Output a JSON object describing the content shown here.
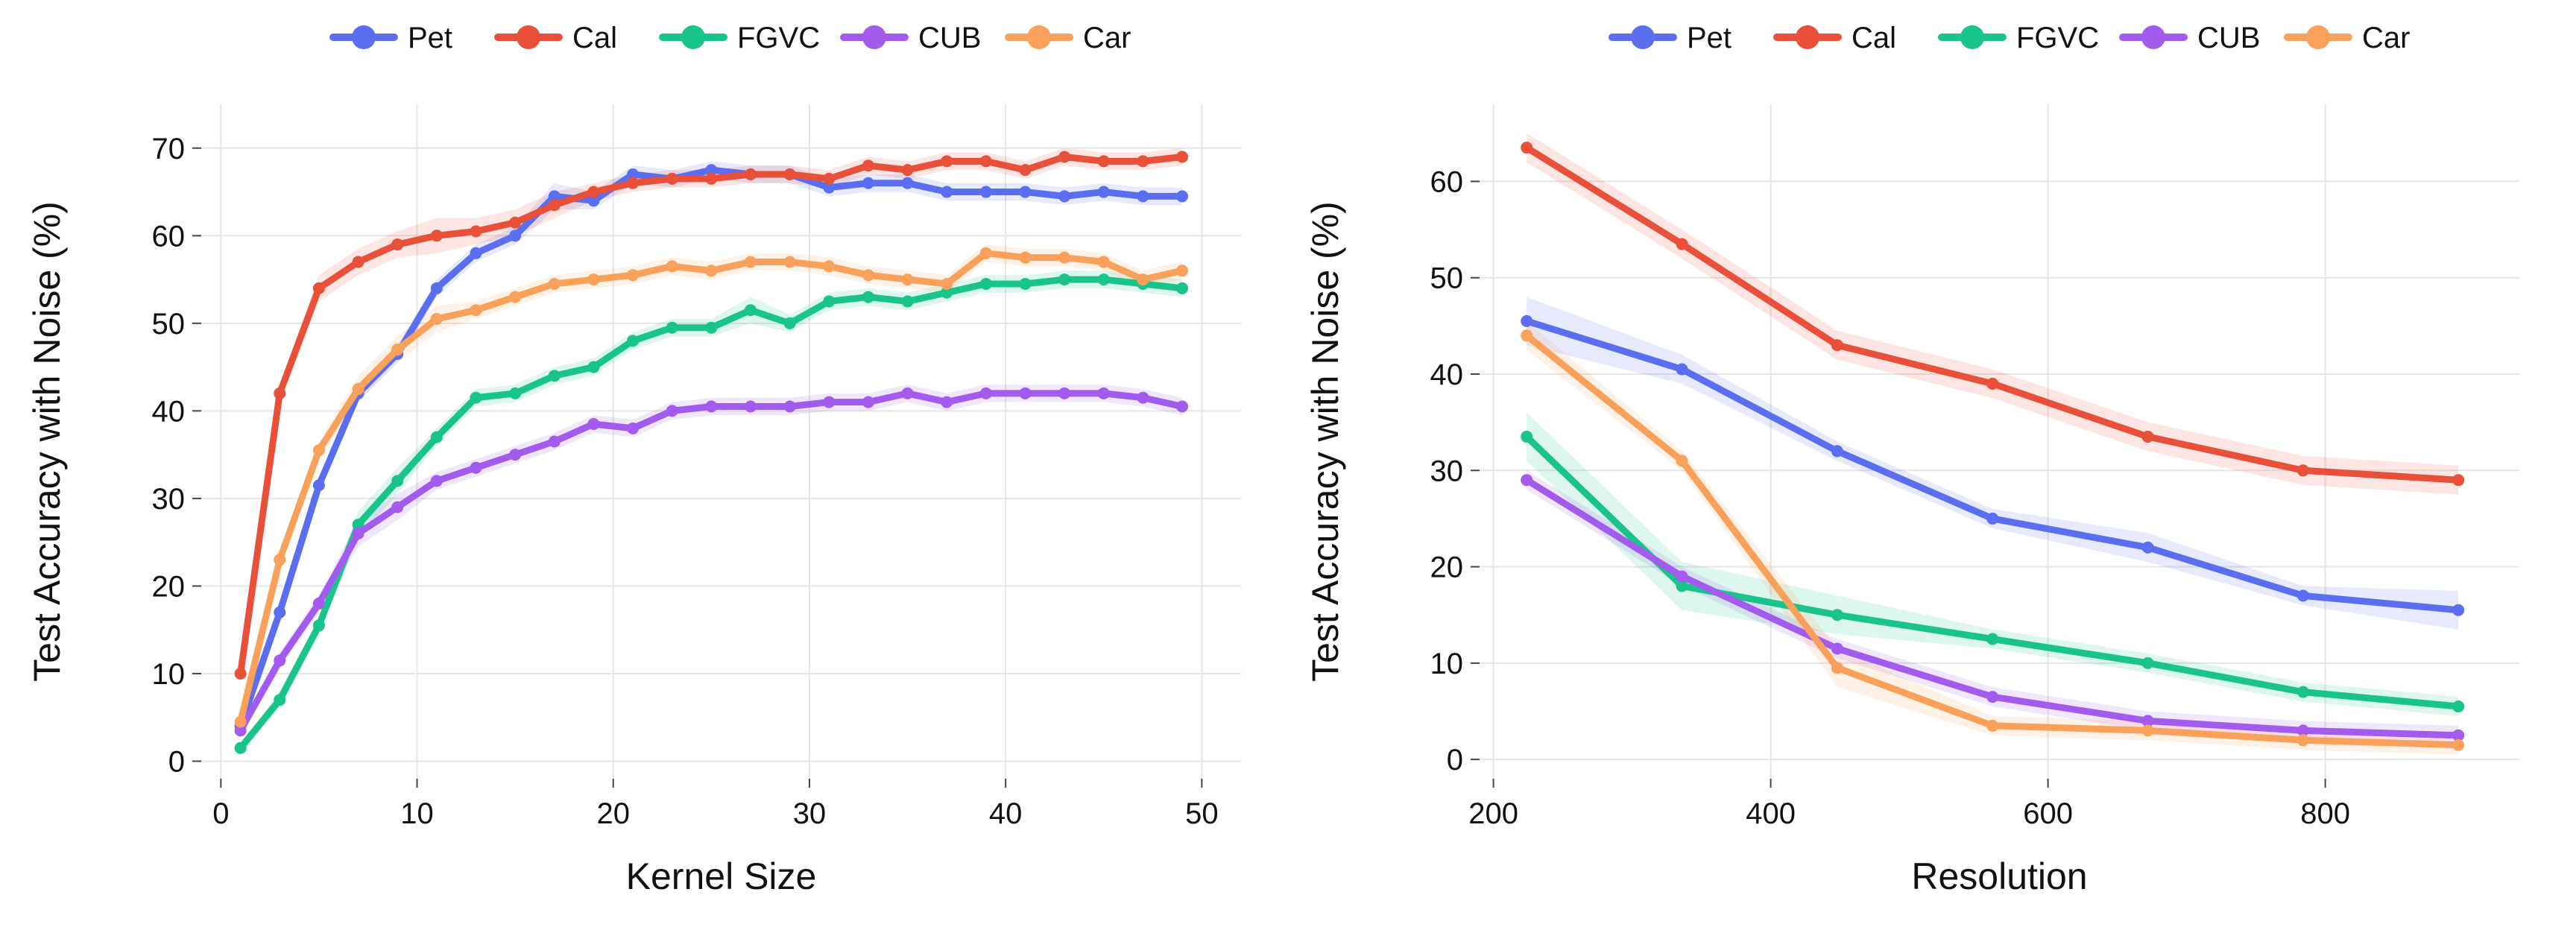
{
  "chart_data": [
    {
      "type": "line",
      "xlabel": "Kernel Size",
      "ylabel": "Test Accuracy with Noise (%)",
      "xlim": [
        -1,
        52
      ],
      "ylim": [
        -2,
        75
      ],
      "xticks": [
        0,
        10,
        20,
        30,
        40,
        50
      ],
      "yticks": [
        0,
        10,
        20,
        30,
        40,
        50,
        60,
        70
      ],
      "grid": true,
      "legend": "top-center",
      "x": [
        1,
        3,
        5,
        7,
        9,
        11,
        13,
        15,
        17,
        19,
        21,
        23,
        25,
        27,
        29,
        31,
        33,
        35,
        37,
        39,
        41,
        43,
        45,
        47,
        49
      ],
      "series": [
        {
          "name": "Pet",
          "color": "#5B6EF0",
          "values": [
            4.0,
            17.0,
            31.5,
            42.0,
            46.5,
            54.0,
            58.0,
            60.0,
            64.5,
            64.0,
            67.0,
            66.5,
            67.5,
            67.0,
            67.0,
            65.5,
            66.0,
            66.0,
            65.0,
            65.0,
            65.0,
            64.5,
            65.0,
            64.5,
            64.5
          ],
          "band": [
            1.0,
            1.0,
            1.0,
            1.0,
            1.0,
            1.0,
            1.0,
            1.0,
            1.5,
            1.0,
            1.0,
            1.0,
            1.0,
            1.0,
            1.0,
            1.0,
            1.0,
            1.0,
            1.0,
            1.0,
            1.0,
            1.0,
            1.0,
            1.0,
            1.0
          ]
        },
        {
          "name": "Cal",
          "color": "#E8503A",
          "values": [
            10.0,
            42.0,
            54.0,
            57.0,
            59.0,
            60.0,
            60.5,
            61.5,
            63.5,
            65.0,
            66.0,
            66.5,
            66.5,
            67.0,
            67.0,
            66.5,
            68.0,
            67.5,
            68.5,
            68.5,
            67.5,
            69.0,
            68.5,
            68.5,
            69.0
          ],
          "band": [
            1.0,
            1.0,
            1.5,
            1.5,
            1.5,
            2.0,
            1.5,
            1.5,
            1.5,
            1.0,
            1.0,
            1.0,
            1.0,
            1.0,
            1.0,
            1.0,
            1.0,
            1.0,
            1.0,
            1.0,
            1.0,
            1.0,
            1.0,
            1.0,
            1.0
          ]
        },
        {
          "name": "FGVC",
          "color": "#19C48B",
          "values": [
            1.5,
            7.0,
            15.5,
            27.0,
            32.0,
            37.0,
            41.5,
            42.0,
            44.0,
            45.0,
            48.0,
            49.5,
            49.5,
            51.5,
            50.0,
            52.5,
            53.0,
            52.5,
            53.5,
            54.5,
            54.5,
            55.0,
            55.0,
            54.5,
            54.0
          ],
          "band": [
            0.5,
            1.0,
            1.0,
            1.5,
            1.5,
            1.0,
            1.0,
            1.0,
            1.0,
            1.0,
            1.0,
            1.0,
            1.0,
            1.5,
            1.0,
            1.0,
            1.0,
            1.0,
            1.0,
            1.0,
            1.0,
            1.0,
            1.0,
            1.0,
            1.0
          ]
        },
        {
          "name": "CUB",
          "color": "#A35BEE",
          "values": [
            3.5,
            11.5,
            18.0,
            26.0,
            29.0,
            32.0,
            33.5,
            35.0,
            36.5,
            38.5,
            38.0,
            40.0,
            40.5,
            40.5,
            40.5,
            41.0,
            41.0,
            42.0,
            41.0,
            42.0,
            42.0,
            42.0,
            42.0,
            41.5,
            40.5
          ],
          "band": [
            0.5,
            1.0,
            1.0,
            1.5,
            1.5,
            1.0,
            1.0,
            1.0,
            1.0,
            1.0,
            1.0,
            1.0,
            1.0,
            1.0,
            1.0,
            1.0,
            1.0,
            1.0,
            1.0,
            1.0,
            1.0,
            1.0,
            1.0,
            1.0,
            1.0
          ]
        },
        {
          "name": "Car",
          "color": "#F9A05A",
          "values": [
            4.5,
            23.0,
            35.5,
            42.5,
            47.0,
            50.5,
            51.5,
            53.0,
            54.5,
            55.0,
            55.5,
            56.5,
            56.0,
            57.0,
            57.0,
            56.5,
            55.5,
            55.0,
            54.5,
            58.0,
            57.5,
            57.5,
            57.0,
            55.0,
            56.0
          ],
          "band": [
            0.5,
            1.0,
            1.0,
            1.5,
            1.5,
            1.5,
            1.0,
            1.0,
            1.0,
            1.0,
            1.0,
            1.0,
            1.0,
            1.0,
            1.0,
            1.0,
            1.0,
            1.0,
            1.0,
            1.0,
            1.0,
            1.0,
            1.0,
            1.0,
            1.0
          ]
        }
      ]
    },
    {
      "type": "line",
      "xlabel": "Resolution",
      "ylabel": "Test Accuracy with Noise (%)",
      "xlim": [
        190,
        940
      ],
      "ylim": [
        -2,
        68
      ],
      "xticks": [
        200,
        400,
        600,
        800
      ],
      "yticks": [
        0,
        10,
        20,
        30,
        40,
        50,
        60
      ],
      "grid": true,
      "legend": "top-center",
      "x": [
        224,
        336,
        448,
        560,
        672,
        784,
        896
      ],
      "series": [
        {
          "name": "Pet",
          "color": "#5B6EF0",
          "values": [
            45.5,
            40.5,
            32.0,
            25.0,
            22.0,
            17.0,
            15.5
          ],
          "band": [
            2.5,
            1.5,
            1.0,
            1.0,
            1.5,
            1.0,
            2.0
          ]
        },
        {
          "name": "Cal",
          "color": "#E8503A",
          "values": [
            63.5,
            53.5,
            43.0,
            39.0,
            33.5,
            30.0,
            29.0
          ],
          "band": [
            1.5,
            1.5,
            1.5,
            1.5,
            1.5,
            1.5,
            1.5
          ]
        },
        {
          "name": "FGVC",
          "color": "#19C48B",
          "values": [
            33.5,
            18.0,
            15.0,
            12.5,
            10.0,
            7.0,
            5.5
          ],
          "band": [
            2.5,
            2.5,
            2.0,
            1.0,
            1.0,
            1.0,
            1.0
          ]
        },
        {
          "name": "CUB",
          "color": "#A35BEE",
          "values": [
            29.0,
            19.0,
            11.5,
            6.5,
            4.0,
            3.0,
            2.5
          ],
          "band": [
            1.0,
            1.0,
            1.0,
            1.0,
            1.0,
            1.0,
            1.0
          ]
        },
        {
          "name": "Car",
          "color": "#F9A05A",
          "values": [
            44.0,
            31.0,
            9.5,
            3.5,
            3.0,
            2.0,
            1.5
          ],
          "band": [
            1.5,
            1.0,
            2.0,
            1.0,
            1.0,
            1.0,
            1.0
          ]
        }
      ]
    }
  ]
}
